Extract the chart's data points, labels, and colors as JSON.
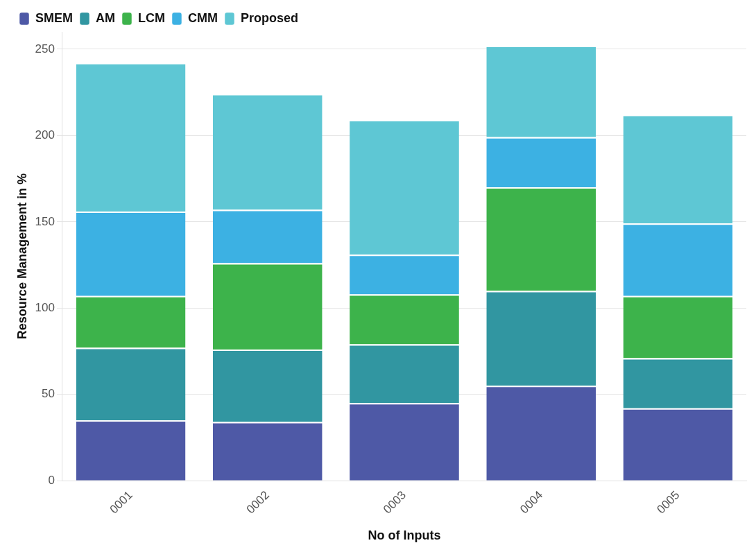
{
  "chart_data": {
    "type": "bar",
    "stacked": true,
    "xlabel": "No of Inputs",
    "ylabel": "Resource Management in %",
    "categories": [
      "0001",
      "0002",
      "0003",
      "0004",
      "0005"
    ],
    "series": [
      {
        "name": "SMEM",
        "color": "#4e59a6",
        "values": [
          35,
          34,
          45,
          55,
          42
        ]
      },
      {
        "name": "AM",
        "color": "#3196a1",
        "values": [
          42,
          42,
          34,
          55,
          29
        ]
      },
      {
        "name": "LCM",
        "color": "#3db34b",
        "values": [
          30,
          50,
          29,
          60,
          36
        ]
      },
      {
        "name": "CMM",
        "color": "#3cb1e3",
        "values": [
          49,
          31,
          23,
          29,
          42
        ]
      },
      {
        "name": "Proposed",
        "color": "#5ec7d4",
        "values": [
          86,
          67,
          78,
          53,
          63
        ]
      }
    ],
    "ylim": [
      0,
      260
    ],
    "yticks": [
      0,
      50,
      100,
      150,
      200,
      250
    ],
    "grid": "y",
    "legend": "top left"
  }
}
